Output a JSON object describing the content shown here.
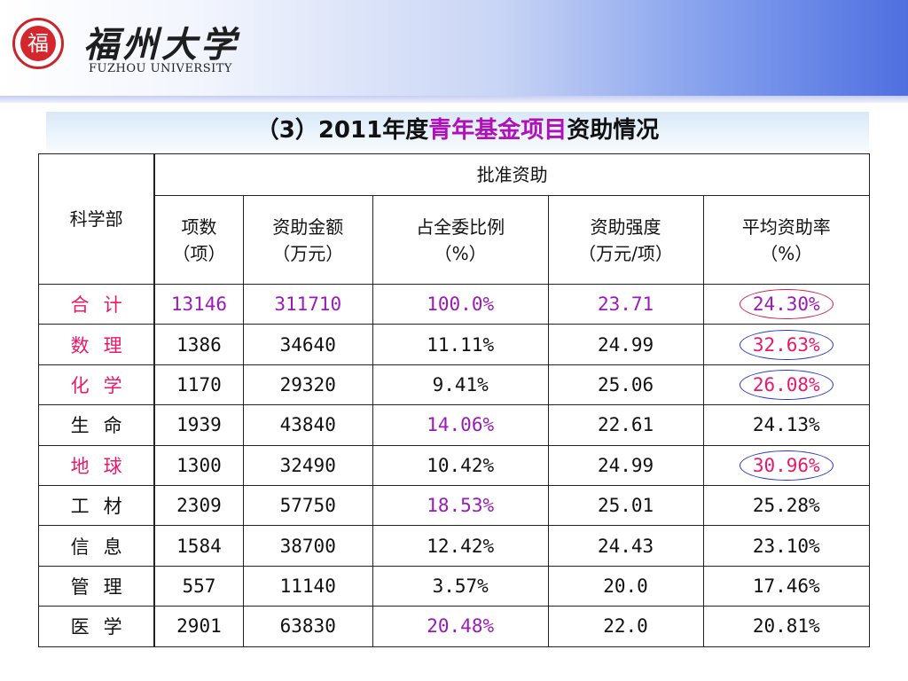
{
  "header": {
    "seal_char": "福",
    "logo_cn": "福州大学",
    "logo_en": "FUZHOU UNIVERSITY"
  },
  "title": {
    "prefix": "（3）2011年度",
    "highlight": "青年基金项目",
    "suffix": "资助情况"
  },
  "table": {
    "header": {
      "dept": "科学部",
      "group": "批准资助",
      "columns": [
        {
          "line1": "项数",
          "line2": "（项）"
        },
        {
          "line1": "资助金额",
          "line2": "（万元）"
        },
        {
          "line1": "占全委比例",
          "line2": "（%）"
        },
        {
          "line1": "资助强度",
          "line2": "（万元/项）"
        },
        {
          "line1": "平均资助率",
          "line2": "（%）"
        }
      ]
    },
    "rows": [
      {
        "dept": "合计",
        "count": "13146",
        "amount": "311710",
        "ratio": "100.0%",
        "intensity": "23.71",
        "rate": "24.30%"
      },
      {
        "dept": "数理",
        "count": "1386",
        "amount": "34640",
        "ratio": "11.11%",
        "intensity": "24.99",
        "rate": "32.63%"
      },
      {
        "dept": "化学",
        "count": "1170",
        "amount": "29320",
        "ratio": "9.41%",
        "intensity": "25.06",
        "rate": "26.08%"
      },
      {
        "dept": "生命",
        "count": "1939",
        "amount": "43840",
        "ratio": "14.06%",
        "intensity": "22.61",
        "rate": "24.13%"
      },
      {
        "dept": "地球",
        "count": "1300",
        "amount": "32490",
        "ratio": "10.42%",
        "intensity": "24.99",
        "rate": "30.96%"
      },
      {
        "dept": "工材",
        "count": "2309",
        "amount": "57750",
        "ratio": "18.53%",
        "intensity": "25.01",
        "rate": "25.28%"
      },
      {
        "dept": "信息",
        "count": "1584",
        "amount": "38700",
        "ratio": "12.42%",
        "intensity": "24.43",
        "rate": "23.10%"
      },
      {
        "dept": "管理",
        "count": "557",
        "amount": "11140",
        "ratio": "3.57%",
        "intensity": "20.0",
        "rate": "17.46%"
      },
      {
        "dept": "医学",
        "count": "2901",
        "amount": "63830",
        "ratio": "20.48%",
        "intensity": "22.0",
        "rate": "20.81%"
      }
    ]
  },
  "colors": {
    "highlight_red": "#e8196a",
    "highlight_purple": "#9a1ab8",
    "circle_blue": "#2838d0",
    "circle_red": "#d0224c"
  }
}
